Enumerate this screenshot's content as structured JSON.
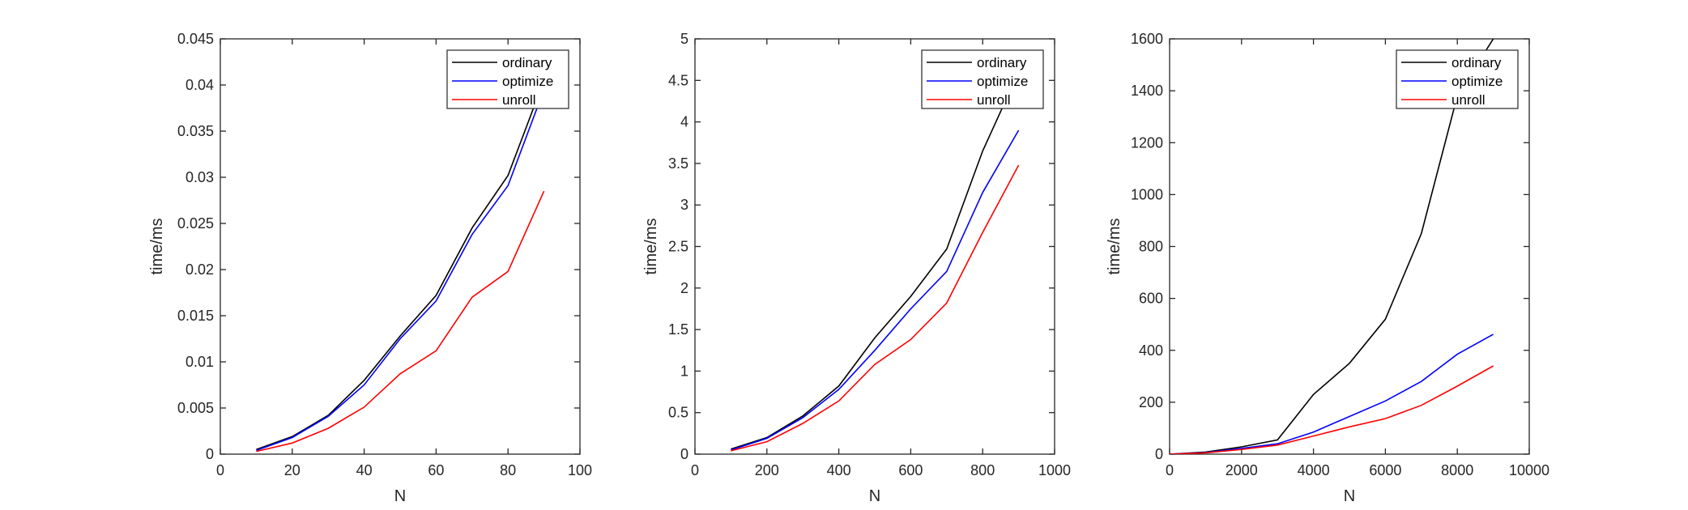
{
  "colors": {
    "ordinary": "#000000",
    "optimize": "#0000ff",
    "unroll": "#ff0000",
    "axis": "#262626"
  },
  "chart_data": [
    {
      "type": "line",
      "xlabel": "N",
      "ylabel": "time/ms",
      "xlim": [
        0,
        100
      ],
      "ylim": [
        0,
        0.045
      ],
      "xticks": [
        0,
        20,
        40,
        60,
        80,
        100
      ],
      "xtick_labels": [
        "0",
        "20",
        "40",
        "60",
        "80",
        "100"
      ],
      "yticks": [
        0,
        0.005,
        0.01,
        0.015,
        0.02,
        0.025,
        0.03,
        0.035,
        0.04,
        0.045
      ],
      "ytick_labels": [
        "0",
        "0.005",
        "0.01",
        "0.015",
        "0.02",
        "0.025",
        "0.03",
        "0.035",
        "0.04",
        "0.045"
      ],
      "grid": false,
      "legend_position": "top-right",
      "x": [
        10,
        20,
        30,
        40,
        50,
        60,
        70,
        80,
        90
      ],
      "series": [
        {
          "name": "ordinary",
          "color": "#000000",
          "values": [
            0.0005,
            0.0019,
            0.0042,
            0.008,
            0.0128,
            0.0172,
            0.0245,
            0.0302,
            0.0405
          ]
        },
        {
          "name": "optimize",
          "color": "#0000ff",
          "values": [
            0.0004,
            0.0018,
            0.0041,
            0.0075,
            0.0125,
            0.0166,
            0.0238,
            0.0291,
            0.0395
          ]
        },
        {
          "name": "unroll",
          "color": "#ff0000",
          "values": [
            0.0003,
            0.0012,
            0.0028,
            0.0051,
            0.0087,
            0.0112,
            0.017,
            0.0198,
            0.0285
          ]
        }
      ]
    },
    {
      "type": "line",
      "xlabel": "N",
      "ylabel": "time/ms",
      "xlim": [
        0,
        1000
      ],
      "ylim": [
        0,
        5
      ],
      "xticks": [
        0,
        200,
        400,
        600,
        800,
        1000
      ],
      "xtick_labels": [
        "0",
        "200",
        "400",
        "600",
        "800",
        "1000"
      ],
      "yticks": [
        0,
        0.5,
        1,
        1.5,
        2,
        2.5,
        3,
        3.5,
        4,
        4.5,
        5
      ],
      "ytick_labels": [
        "0",
        "0.5",
        "1",
        "1.5",
        "2",
        "2.5",
        "3",
        "3.5",
        "4",
        "4.5",
        "5"
      ],
      "grid": false,
      "legend_position": "top-right",
      "x": [
        100,
        200,
        300,
        400,
        500,
        600,
        700,
        800,
        900
      ],
      "series": [
        {
          "name": "ordinary",
          "color": "#000000",
          "values": [
            0.06,
            0.2,
            0.46,
            0.82,
            1.4,
            1.9,
            2.47,
            3.65,
            4.6
          ]
        },
        {
          "name": "optimize",
          "color": "#0000ff",
          "values": [
            0.05,
            0.19,
            0.44,
            0.78,
            1.25,
            1.75,
            2.2,
            3.15,
            3.9
          ]
        },
        {
          "name": "unroll",
          "color": "#ff0000",
          "values": [
            0.04,
            0.15,
            0.37,
            0.64,
            1.08,
            1.38,
            1.82,
            2.67,
            3.48
          ]
        }
      ]
    },
    {
      "type": "line",
      "xlabel": "N",
      "ylabel": "time/ms",
      "xlim": [
        0,
        10000
      ],
      "ylim": [
        0,
        1600
      ],
      "xticks": [
        0,
        2000,
        4000,
        6000,
        8000,
        10000
      ],
      "xtick_labels": [
        "0",
        "2000",
        "4000",
        "6000",
        "8000",
        "10000"
      ],
      "yticks": [
        0,
        200,
        400,
        600,
        800,
        1000,
        1200,
        1400,
        1600
      ],
      "ytick_labels": [
        "0",
        "200",
        "400",
        "600",
        "800",
        "1000",
        "1200",
        "1400",
        "1600"
      ],
      "grid": false,
      "legend_position": "top-right",
      "x": [
        0,
        1000,
        2000,
        3000,
        4000,
        5000,
        6000,
        7000,
        8000,
        9000
      ],
      "series": [
        {
          "name": "ordinary",
          "color": "#000000",
          "values": [
            0,
            8,
            28,
            55,
            230,
            350,
            520,
            850,
            1380,
            1600
          ]
        },
        {
          "name": "optimize",
          "color": "#0000ff",
          "values": [
            0,
            6,
            22,
            40,
            85,
            145,
            205,
            280,
            385,
            462
          ]
        },
        {
          "name": "unroll",
          "color": "#ff0000",
          "values": [
            0,
            5,
            18,
            35,
            70,
            105,
            137,
            188,
            262,
            340
          ]
        }
      ]
    }
  ]
}
